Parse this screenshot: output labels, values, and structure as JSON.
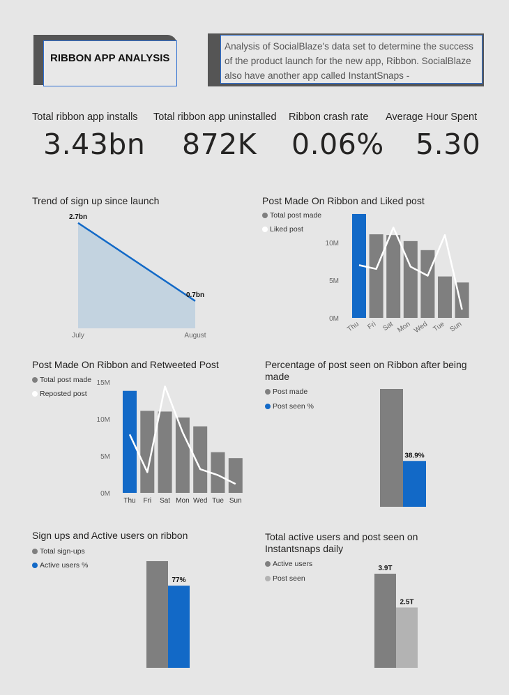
{
  "header": {
    "title": "RIBBON APP ANALYSIS",
    "description": "Analysis of SocialBlaze's data set to determine the success of the product launch for the new app, Ribbon. SocialBlaze also have another app called InstantSnaps -"
  },
  "kpis": [
    {
      "label": "Total ribbon app installs",
      "value": "3.43bn"
    },
    {
      "label": "Total ribbon app uninstalled",
      "value": "872K"
    },
    {
      "label": "Ribbon crash rate",
      "value": "0.06%"
    },
    {
      "label": "Average Hour Spent",
      "value": "5.30"
    }
  ],
  "colors": {
    "blue": "#1269c7",
    "gray": "#7f7f7f",
    "light_gray": "#b3b3b3",
    "area": "#c3d3e0",
    "line": "#1269c7",
    "white": "#ffffff"
  },
  "chart_data": [
    {
      "id": "signup-trend",
      "type": "area",
      "title": "Trend of sign up since launch",
      "categories": [
        "July",
        "August"
      ],
      "values": [
        2.7,
        0.7
      ],
      "data_labels": [
        "2.7bn",
        "0.7bn"
      ],
      "xlabel": "",
      "ylabel": ""
    },
    {
      "id": "posts-liked",
      "type": "bar",
      "title": "Post Made On Ribbon and Liked post",
      "categories": [
        "Thu",
        "Fri",
        "Sat",
        "Mon",
        "Wed",
        "Tue",
        "Sun"
      ],
      "series": [
        {
          "name": "Total post made",
          "values": [
            13.8,
            11.1,
            11.0,
            10.2,
            9.0,
            5.5,
            4.7
          ]
        },
        {
          "name": "Liked post",
          "values": [
            7.0,
            6.5,
            12.0,
            6.8,
            5.6,
            11.0,
            1.1
          ]
        }
      ],
      "yticks": [
        "0M",
        "5M",
        "10M"
      ],
      "ylim": [
        0,
        15
      ],
      "legend": "top-left"
    },
    {
      "id": "posts-retweeted",
      "type": "bar",
      "title": "Post Made On Ribbon and Retweeted Post",
      "categories": [
        "Thu",
        "Fri",
        "Sat",
        "Mon",
        "Wed",
        "Tue",
        "Sun"
      ],
      "series": [
        {
          "name": "Total post made",
          "values": [
            13.8,
            11.1,
            11.0,
            10.2,
            9.0,
            5.5,
            4.7
          ]
        },
        {
          "name": "Reposted post",
          "values": [
            7.9,
            2.8,
            14.4,
            8.2,
            3.2,
            2.4,
            1.2
          ]
        }
      ],
      "yticks": [
        "0M",
        "5M",
        "10M",
        "15M"
      ],
      "ylim": [
        0,
        15
      ],
      "legend": "top-left"
    },
    {
      "id": "post-seen-pct",
      "type": "bar",
      "title": "Percentage of post seen on Ribbon after being made",
      "categories": [
        "Post made",
        "Post seen %"
      ],
      "values": [
        100,
        38.9
      ],
      "data_labels": [
        "",
        "38.9%"
      ],
      "legend": "top-left"
    },
    {
      "id": "active-users-pct",
      "type": "bar",
      "title": "Sign ups and Active users on ribbon",
      "categories": [
        "Total sign-ups",
        "Active users %"
      ],
      "values": [
        100,
        77
      ],
      "data_labels": [
        "",
        "77%"
      ],
      "legend": "top-left"
    },
    {
      "id": "instantsnaps-daily",
      "type": "bar",
      "title": "Total active users and post seen on Instantsnaps daily",
      "categories": [
        "Active users",
        "Post seen"
      ],
      "values": [
        3.9,
        2.5
      ],
      "data_labels": [
        "3.9T",
        "2.5T"
      ],
      "legend": "top-left"
    }
  ]
}
